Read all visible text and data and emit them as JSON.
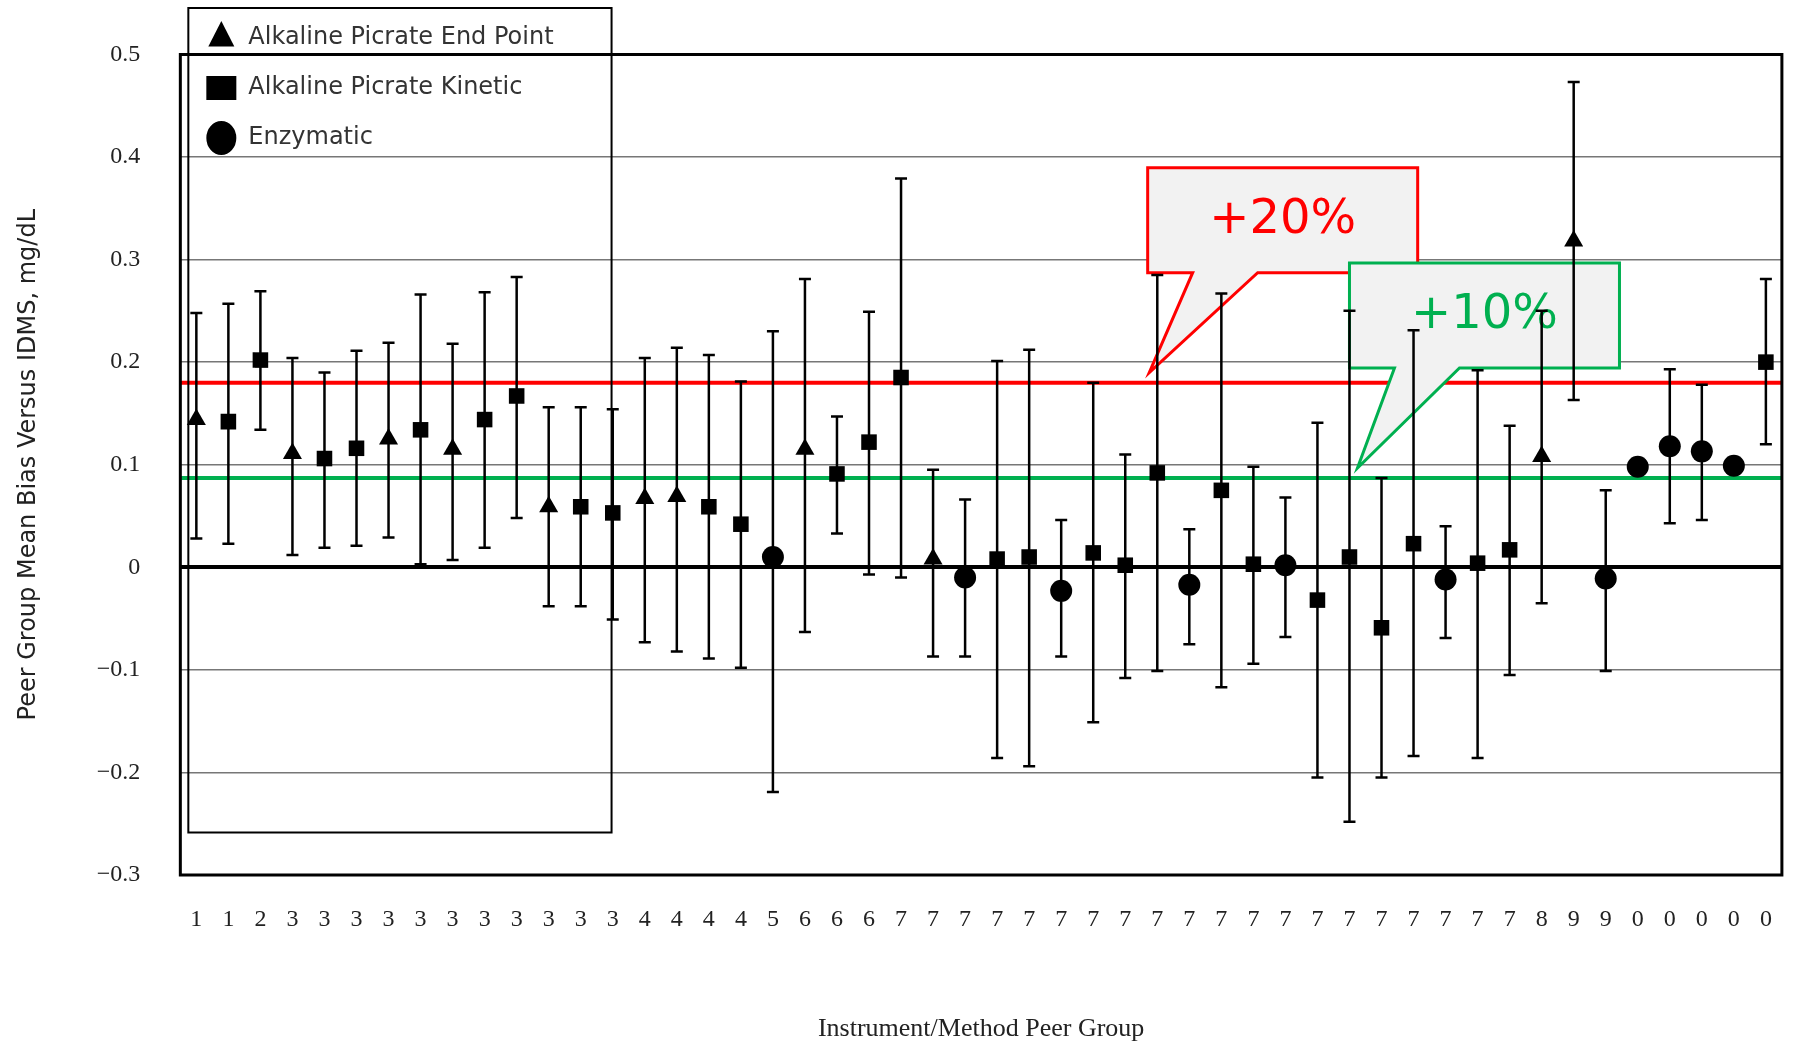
{
  "chart_data": {
    "type": "scatter",
    "xlabel": "Instrument/Method Peer Group",
    "ylabel": "Peer Group Mean Bias Versus IDMS, mg/dL",
    "categories": [
      "1",
      "1",
      "2",
      "3",
      "3",
      "3",
      "3",
      "3",
      "3",
      "3",
      "3",
      "3",
      "3",
      "3",
      "4",
      "4",
      "4",
      "4",
      "5",
      "6",
      "6",
      "6",
      "7",
      "7",
      "7",
      "7",
      "7",
      "7",
      "7",
      "7",
      "7",
      "7",
      "7",
      "7",
      "7",
      "7",
      "7",
      "7",
      "7",
      "7",
      "7",
      "7",
      "8",
      "9",
      "9",
      "0",
      "0",
      "0",
      "0",
      "0"
    ],
    "ylim": [
      -0.3,
      0.5
    ],
    "yticks": [
      {
        "value": -0.3,
        "label": "−0.3"
      },
      {
        "value": -0.2,
        "label": "−0.2"
      },
      {
        "value": -0.1,
        "label": "−0.1"
      },
      0,
      0.1,
      0.2,
      0.3,
      0.4,
      0.5
    ],
    "grid": "y",
    "legend": "top left",
    "series": [
      {
        "name": "Alkaline Picrate End Point",
        "color": "#000000",
        "marker": "triangle",
        "values": [
          0.144,
          null,
          null,
          0.111,
          null,
          null,
          0.125,
          null,
          0.115,
          null,
          null,
          0.059,
          null,
          null,
          0.067,
          0.069,
          null,
          null,
          null,
          0.115,
          null,
          null,
          null,
          0.008,
          null,
          null,
          null,
          null,
          null,
          null,
          null,
          null,
          null,
          null,
          null,
          null,
          null,
          null,
          null,
          null,
          null,
          null,
          0.108,
          0.318,
          null,
          null,
          null,
          null,
          null,
          null
        ],
        "errors": [
          [
            0.028,
            0.248
          ],
          null,
          null,
          [
            0.012,
            0.204
          ],
          null,
          null,
          [
            0.029,
            0.219
          ],
          null,
          [
            0.007,
            0.218
          ],
          null,
          null,
          [
            -0.038,
            0.156
          ],
          null,
          null,
          [
            -0.073,
            0.204
          ],
          [
            -0.082,
            0.214
          ],
          null,
          null,
          null,
          [
            -0.063,
            0.281
          ],
          null,
          null,
          null,
          [
            -0.087,
            0.095
          ],
          null,
          null,
          null,
          null,
          null,
          null,
          null,
          null,
          null,
          null,
          null,
          null,
          null,
          null,
          null,
          null,
          null,
          null,
          [
            -0.035,
            0.25
          ],
          [
            0.163,
            0.473
          ],
          null,
          null,
          null,
          null,
          null,
          null
        ]
      },
      {
        "name": "Alkaline Picrate Kinetic",
        "color": "#000000",
        "marker": "square",
        "values": [
          null,
          0.142,
          0.202,
          null,
          0.106,
          0.116,
          null,
          0.134,
          null,
          0.144,
          0.167,
          null,
          0.059,
          0.053,
          null,
          null,
          0.059,
          0.042,
          null,
          null,
          0.091,
          0.122,
          0.185,
          null,
          null,
          0.008,
          0.01,
          null,
          0.014,
          0.002,
          0.092,
          null,
          0.075,
          0.003,
          null,
          -0.032,
          0.01,
          -0.059,
          0.023,
          null,
          0.004,
          0.017,
          null,
          null,
          null,
          null,
          null,
          null,
          null,
          0.2
        ],
        "errors": [
          null,
          [
            0.023,
            0.257
          ],
          [
            0.134,
            0.269
          ],
          null,
          [
            0.019,
            0.19
          ],
          [
            0.021,
            0.211
          ],
          null,
          [
            0.003,
            0.266
          ],
          null,
          [
            0.019,
            0.268
          ],
          [
            0.048,
            0.283
          ],
          null,
          [
            -0.038,
            0.156
          ],
          [
            -0.051,
            0.154
          ],
          null,
          null,
          [
            -0.089,
            0.207
          ],
          [
            -0.098,
            0.181
          ],
          null,
          null,
          [
            0.033,
            0.147
          ],
          [
            -0.007,
            0.249
          ],
          [
            -0.01,
            0.379
          ],
          null,
          null,
          [
            -0.186,
            0.201
          ],
          [
            -0.194,
            0.212
          ],
          null,
          [
            -0.151,
            0.18
          ],
          [
            -0.108,
            0.11
          ],
          [
            -0.101,
            0.285
          ],
          null,
          [
            -0.117,
            0.267
          ],
          [
            -0.094,
            0.098
          ],
          null,
          [
            -0.205,
            0.141
          ],
          [
            -0.248,
            0.25
          ],
          [
            -0.205,
            0.087
          ],
          [
            -0.184,
            0.231
          ],
          null,
          [
            -0.186,
            0.192
          ],
          [
            -0.105,
            0.138
          ],
          null,
          null,
          null,
          null,
          null,
          null,
          null,
          [
            0.12,
            0.281
          ]
        ]
      },
      {
        "name": "Enzymatic",
        "color": "#000000",
        "marker": "circle",
        "values": [
          null,
          null,
          null,
          null,
          null,
          null,
          null,
          null,
          null,
          null,
          null,
          null,
          null,
          null,
          null,
          null,
          null,
          null,
          0.01,
          null,
          null,
          null,
          null,
          null,
          -0.01,
          null,
          null,
          -0.023,
          null,
          null,
          null,
          -0.017,
          null,
          null,
          0.002,
          null,
          null,
          null,
          null,
          -0.012,
          null,
          null,
          null,
          null,
          -0.011,
          0.098,
          0.118,
          0.113,
          0.099,
          null
        ],
        "errors": [
          null,
          null,
          null,
          null,
          null,
          null,
          null,
          null,
          null,
          null,
          null,
          null,
          null,
          null,
          null,
          null,
          null,
          null,
          [
            -0.219,
            0.23
          ],
          null,
          null,
          null,
          null,
          null,
          [
            -0.087,
            0.066
          ],
          null,
          null,
          [
            -0.087,
            0.046
          ],
          null,
          null,
          null,
          [
            -0.075,
            0.037
          ],
          null,
          null,
          [
            -0.068,
            0.068
          ],
          null,
          null,
          null,
          null,
          [
            -0.069,
            0.04
          ],
          null,
          null,
          null,
          null,
          [
            -0.101,
            0.075
          ],
          null,
          [
            0.043,
            0.193
          ],
          [
            0.046,
            0.178
          ],
          null,
          null
        ]
      }
    ],
    "ref_lines": [
      {
        "axis": "y",
        "value": 0.18,
        "color": "#ff0000"
      },
      {
        "axis": "y",
        "value": 0.087,
        "color": "#00b050"
      }
    ],
    "annotations": [
      {
        "text": "+20%",
        "y": 0.18
      },
      {
        "text": "+10%",
        "y": 0.087
      }
    ]
  }
}
